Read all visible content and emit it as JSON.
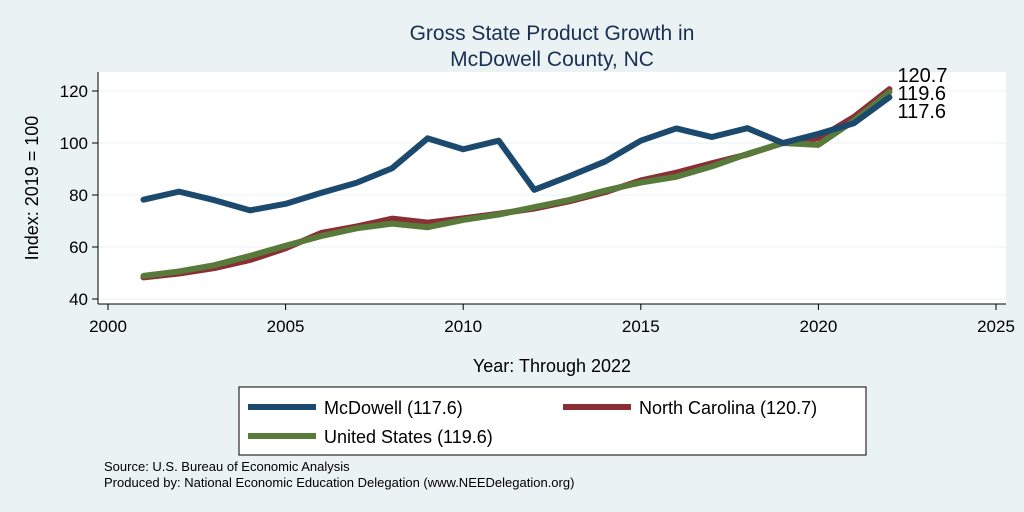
{
  "chart_data": {
    "type": "line",
    "title": [
      "Gross State Product Growth in",
      "McDowell County, NC"
    ],
    "xlabel": "Year: Through 2022",
    "ylabel": "Index: 2019 = 100",
    "xlim": [
      2000,
      2025
    ],
    "ylim": [
      40,
      125
    ],
    "xticks": [
      2000,
      2005,
      2010,
      2015,
      2020,
      2025
    ],
    "yticks": [
      40,
      60,
      80,
      100,
      120
    ],
    "grid": true,
    "legend_position": "bottom",
    "x": [
      2001,
      2002,
      2003,
      2004,
      2005,
      2006,
      2007,
      2008,
      2009,
      2010,
      2011,
      2012,
      2013,
      2014,
      2015,
      2016,
      2017,
      2018,
      2019,
      2020,
      2021,
      2022
    ],
    "series": [
      {
        "name": "McDowell",
        "legend_label": "McDowell  (117.6)",
        "end_label": "117.6",
        "color": "#1b4a6e",
        "values": [
          78.2,
          81.3,
          78.0,
          74.1,
          76.6,
          80.8,
          84.7,
          90.3,
          101.8,
          97.6,
          100.9,
          82.0,
          87.3,
          92.9,
          100.9,
          105.6,
          102.3,
          105.7,
          100.0,
          103.5,
          107.6,
          117.6
        ]
      },
      {
        "name": "North Carolina",
        "legend_label": "North Carolina (120.7)",
        "end_label": "120.7",
        "color": "#8b2e35",
        "values": [
          48.3,
          49.8,
          51.9,
          55.0,
          59.5,
          65.4,
          67.9,
          70.9,
          69.4,
          71.0,
          72.8,
          74.8,
          77.6,
          81.1,
          85.6,
          88.6,
          92.2,
          95.6,
          100.0,
          101.8,
          110.0,
          120.7
        ]
      },
      {
        "name": "United States",
        "legend_label": "United States (119.6)",
        "end_label": "119.6",
        "color": "#587a3a",
        "values": [
          48.9,
          50.6,
          53.0,
          56.6,
          60.5,
          64.2,
          67.2,
          69.0,
          67.6,
          70.4,
          72.5,
          75.3,
          78.1,
          81.7,
          84.8,
          87.0,
          91.0,
          95.8,
          100.0,
          99.3,
          108.6,
          119.6
        ]
      }
    ]
  },
  "notes": {
    "source": "Source: U.S. Bureau of Economic Analysis",
    "produced_by": "Produced by: National Economic Education Delegation (www.NEEDelegation.org)"
  }
}
